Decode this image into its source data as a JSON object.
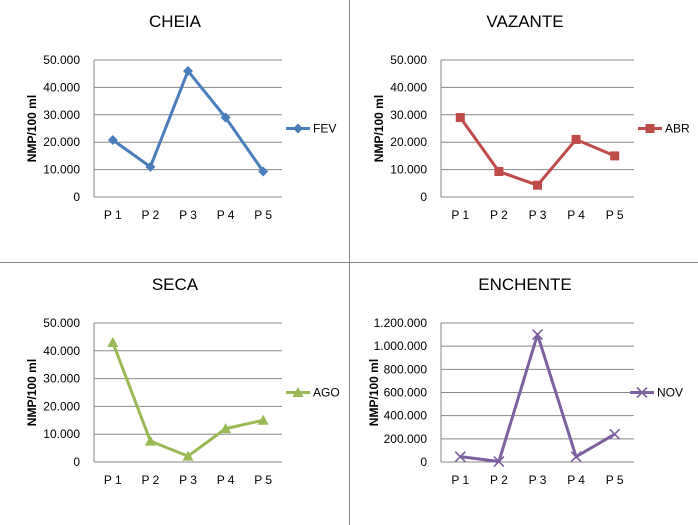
{
  "chart_data": [
    {
      "type": "line",
      "title": "CHEIA",
      "ylabel": "NMP/100 ml",
      "categories": [
        "P 1",
        "P 2",
        "P 3",
        "P 4",
        "P 5"
      ],
      "yticks": [
        "0",
        "10.000",
        "20.000",
        "30.000",
        "40.000",
        "50.000"
      ],
      "ylim": [
        0,
        50000
      ],
      "grid": true,
      "legend": "right",
      "marker": "diamond",
      "color": "#4A7EBB",
      "series": [
        {
          "name": "FEV",
          "values": [
            20800,
            11000,
            46000,
            29000,
            9300
          ]
        }
      ]
    },
    {
      "type": "line",
      "title": "VAZANTE",
      "ylabel": "NMP/100 ml",
      "categories": [
        "P 1",
        "P 2",
        "P 3",
        "P 4",
        "P 5"
      ],
      "yticks": [
        "0",
        "10.000",
        "20.000",
        "30.000",
        "40.000",
        "50.000"
      ],
      "ylim": [
        0,
        50000
      ],
      "grid": true,
      "legend": "right",
      "marker": "square",
      "color": "#BE4B48",
      "series": [
        {
          "name": "ABR",
          "values": [
            29000,
            9300,
            4300,
            21000,
            15000
          ]
        }
      ]
    },
    {
      "type": "line",
      "title": "SECA",
      "ylabel": "NMP/100 ml",
      "categories": [
        "P 1",
        "P 2",
        "P 3",
        "P 4",
        "P 5"
      ],
      "yticks": [
        "0",
        "10.000",
        "20.000",
        "30.000",
        "40.000",
        "50.000"
      ],
      "ylim": [
        0,
        50000
      ],
      "grid": true,
      "legend": "right",
      "marker": "triangle",
      "color": "#98B954",
      "series": [
        {
          "name": "AGO",
          "values": [
            43000,
            7500,
            2100,
            12000,
            15000
          ]
        }
      ]
    },
    {
      "type": "line",
      "title": "ENCHENTE",
      "ylabel": "NMP/100 ml",
      "categories": [
        "P 1",
        "P 2",
        "P 3",
        "P 4",
        "P 5"
      ],
      "yticks": [
        "0",
        "200.000",
        "400.000",
        "600.000",
        "800.000",
        "1.000.000",
        "1.200.000"
      ],
      "ylim": [
        0,
        1200000
      ],
      "grid": true,
      "legend": "right",
      "marker": "x",
      "color": "#7D60A0",
      "series": [
        {
          "name": "NOV",
          "values": [
            46000,
            4000,
            1100000,
            46000,
            240000
          ]
        }
      ]
    }
  ]
}
